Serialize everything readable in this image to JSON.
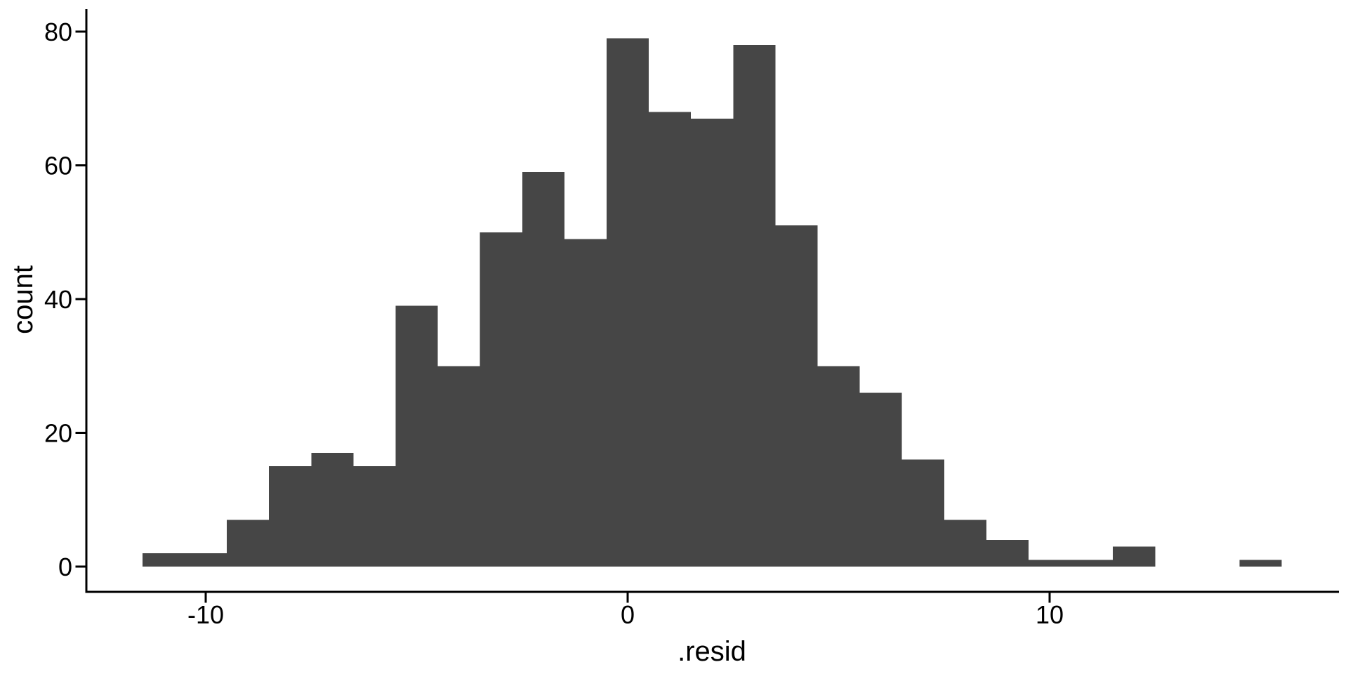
{
  "chart_data": {
    "type": "bar",
    "subtype": "histogram",
    "title": "",
    "xlabel": ".resid",
    "ylabel": "count",
    "bar_color": "#464646",
    "axis_color": "#000000",
    "text_color": "#000000",
    "background_color": "#ffffff",
    "grid": false,
    "legend": false,
    "bin_width": 1,
    "bin_centers": [
      -11,
      -10,
      -9,
      -8,
      -7,
      -6,
      -5,
      -4,
      -3,
      -2,
      -1,
      0,
      1,
      2,
      3,
      4,
      5,
      6,
      7,
      8,
      9,
      10,
      11,
      12,
      13,
      14,
      15
    ],
    "counts": [
      2,
      2,
      7,
      15,
      17,
      15,
      39,
      30,
      50,
      59,
      49,
      79,
      68,
      67,
      78,
      51,
      30,
      26,
      16,
      7,
      4,
      1,
      1,
      3,
      0,
      0,
      1
    ],
    "x_ticks": [
      {
        "value": -10,
        "label": "-10"
      },
      {
        "value": 0,
        "label": "0"
      },
      {
        "value": 10,
        "label": "10"
      }
    ],
    "y_ticks": [
      {
        "value": 0,
        "label": "0"
      },
      {
        "value": 20,
        "label": "20"
      },
      {
        "value": 40,
        "label": "40"
      },
      {
        "value": 60,
        "label": "60"
      },
      {
        "value": 80,
        "label": "80"
      }
    ],
    "xlim": [
      -12.8,
      16.9
    ],
    "ylim": [
      0,
      83.7
    ]
  }
}
